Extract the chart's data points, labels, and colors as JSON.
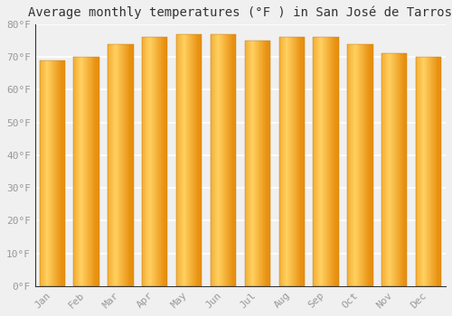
{
  "title": "Average monthly temperatures (°F ) in San José de Tarros",
  "months": [
    "Jan",
    "Feb",
    "Mar",
    "Apr",
    "May",
    "Jun",
    "Jul",
    "Aug",
    "Sep",
    "Oct",
    "Nov",
    "Dec"
  ],
  "values": [
    69,
    70,
    74,
    76,
    77,
    77,
    75,
    76,
    76,
    74,
    71,
    70
  ],
  "bar_color_light": "#FFD070",
  "bar_color_dark": "#E89010",
  "bar_color_mid": "#FFA820",
  "ylim": [
    0,
    80
  ],
  "yticks": [
    0,
    10,
    20,
    30,
    40,
    50,
    60,
    70,
    80
  ],
  "ytick_labels": [
    "0°F",
    "10°F",
    "20°F",
    "30°F",
    "40°F",
    "50°F",
    "60°F",
    "70°F",
    "80°F"
  ],
  "background_color": "#f0f0f0",
  "grid_color": "#ffffff",
  "title_fontsize": 10,
  "tick_fontsize": 8,
  "tick_color": "#999999",
  "bar_width": 0.75
}
